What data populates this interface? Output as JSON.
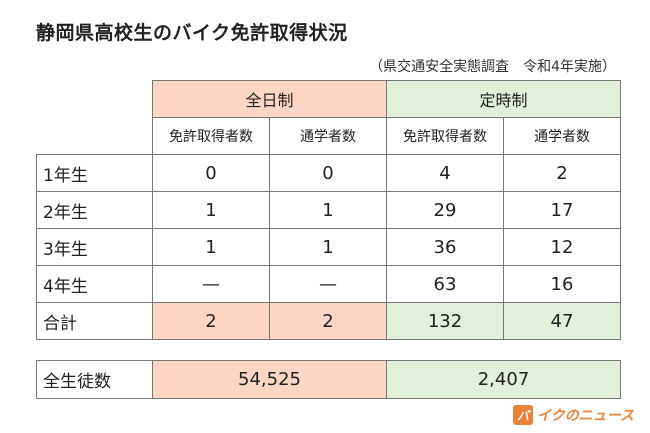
{
  "title": "静岡県高校生のバイク免許取得状況",
  "subtitle": "（県交通安全実態調査　令和4年実施）",
  "groups": {
    "zennichi": "全日制",
    "teiji": "定時制"
  },
  "subheaders": {
    "zen_license": "免許取得者数",
    "zen_commute": "通学者数",
    "tei_license": "免許取得者数",
    "tei_commute": "通学者数"
  },
  "rows": [
    {
      "label": "1年生",
      "zen_license": "0",
      "zen_commute": "0",
      "tei_license": "4",
      "tei_commute": "2"
    },
    {
      "label": "2年生",
      "zen_license": "1",
      "zen_commute": "1",
      "tei_license": "29",
      "tei_commute": "17"
    },
    {
      "label": "3年生",
      "zen_license": "1",
      "zen_commute": "1",
      "tei_license": "36",
      "tei_commute": "12"
    },
    {
      "label": "4年生",
      "zen_license": "—",
      "zen_commute": "—",
      "tei_license": "63",
      "tei_commute": "16"
    },
    {
      "label": "合計",
      "zen_license": "2",
      "zen_commute": "2",
      "tei_license": "132",
      "tei_commute": "47"
    }
  ],
  "total_students": {
    "label": "全生徒数",
    "zennichi": "54,525",
    "teiji": "2,407"
  },
  "logo": {
    "mark": "バ",
    "text": "イクのニュース"
  },
  "colors": {
    "zennichi_bg": "#fcd5c5",
    "teiji_bg": "#e2efda",
    "logo": "#e8833a"
  }
}
